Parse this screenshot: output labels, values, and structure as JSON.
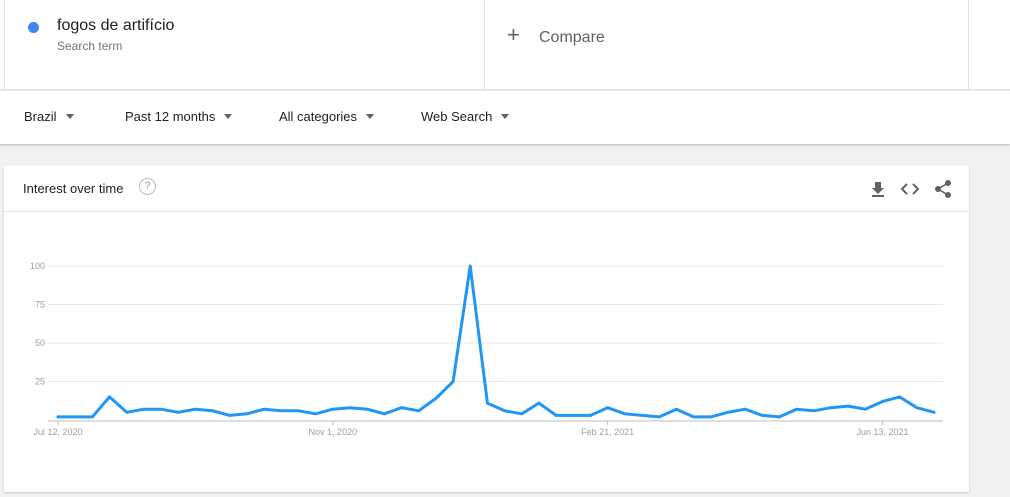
{
  "search_term": {
    "title": "fogos de artifício",
    "subtitle": "Search term",
    "color": "#4285f4"
  },
  "compare": {
    "plus": "+",
    "label": "Compare"
  },
  "filters": {
    "region": "Brazil",
    "period": "Past 12 months",
    "category": "All categories",
    "property": "Web Search"
  },
  "card": {
    "title": "Interest over time",
    "help": "?",
    "icons": [
      "download-icon",
      "embed-icon",
      "share-icon"
    ]
  },
  "chart_data": {
    "type": "line",
    "title": "Interest over time",
    "xlabel": "",
    "ylabel": "",
    "ylim": [
      0,
      100
    ],
    "yticks": [
      25,
      50,
      75,
      100
    ],
    "grid": true,
    "x_tick_labels": [
      {
        "label": "Jul 12, 2020",
        "index": 0
      },
      {
        "label": "Nov 1, 2020",
        "index": 16
      },
      {
        "label": "Feb 21, 2021",
        "index": 32
      },
      {
        "label": "Jun 13, 2021",
        "index": 48
      }
    ],
    "series": [
      {
        "color": "#2196f3",
        "values": [
          2,
          2,
          2,
          15,
          5,
          7,
          7,
          5,
          7,
          6,
          3,
          4,
          7,
          6,
          6,
          4,
          7,
          8,
          7,
          4,
          8,
          6,
          14,
          25,
          100,
          11,
          6,
          4,
          11,
          3,
          3,
          3,
          8,
          4,
          3,
          2,
          7,
          2,
          2,
          5,
          7,
          3,
          2,
          7,
          6,
          8,
          9,
          7,
          12,
          15,
          8,
          5
        ]
      }
    ]
  }
}
